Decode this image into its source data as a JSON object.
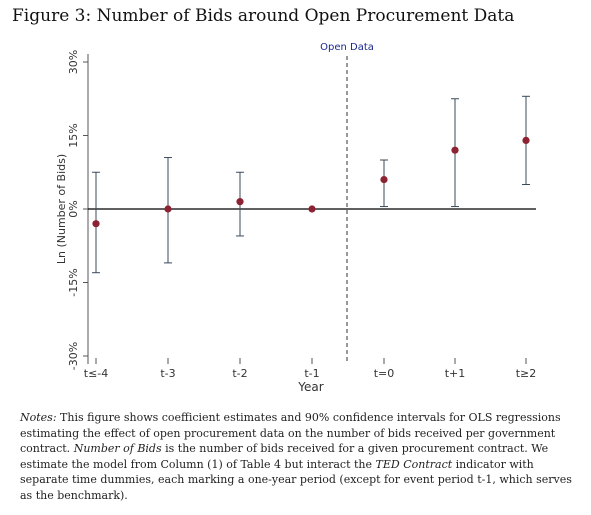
{
  "figure": {
    "title": "Figure 3: Number of Bids around Open Procurement Data"
  },
  "chart_data": {
    "type": "scatter",
    "subtype": "coefficient plot with confidence intervals",
    "categories": [
      "t≤-4",
      "t-3",
      "t-2",
      "t-1",
      "t=0",
      "t+1",
      "t≥2"
    ],
    "estimates": [
      -3,
      0,
      1.5,
      0,
      6,
      12,
      14
    ],
    "ci_low": [
      -13,
      -11,
      -5.5,
      0,
      0.5,
      0.5,
      5
    ],
    "ci_high": [
      7.5,
      10.5,
      7.5,
      0,
      10,
      22.5,
      23
    ],
    "xlabel": "Year",
    "ylabel": "Ln (Number of Bids)",
    "ylim": [
      -30,
      30
    ],
    "yticks": [
      -30,
      -15,
      0,
      15,
      30
    ],
    "ytick_labels": [
      "-30%",
      "-15%",
      "0%",
      "15%",
      "30%"
    ],
    "zero_line": true,
    "event_line": {
      "between": [
        "t-1",
        "t=0"
      ],
      "label": "Open Data",
      "style": "dashed"
    },
    "marker_color": "#8b2332",
    "ci_color": "#3a4a5a",
    "grid": false
  },
  "notes": {
    "label": "Notes:",
    "text_1": " This figure shows coefficient estimates and 90% confidence intervals for OLS regressions estimating the effect of open procurement data on the number of bids received per government contract. ",
    "term_1": "Number of Bids",
    "text_2": " is the number of bids received for a given procurement contract. We estimate the model from Column (1) of Table 4 but interact the ",
    "term_2": "TED Contract",
    "text_3": " indicator with separate time dummies, each marking a one-year period (except for event period t-1, which serves as the benchmark)."
  }
}
